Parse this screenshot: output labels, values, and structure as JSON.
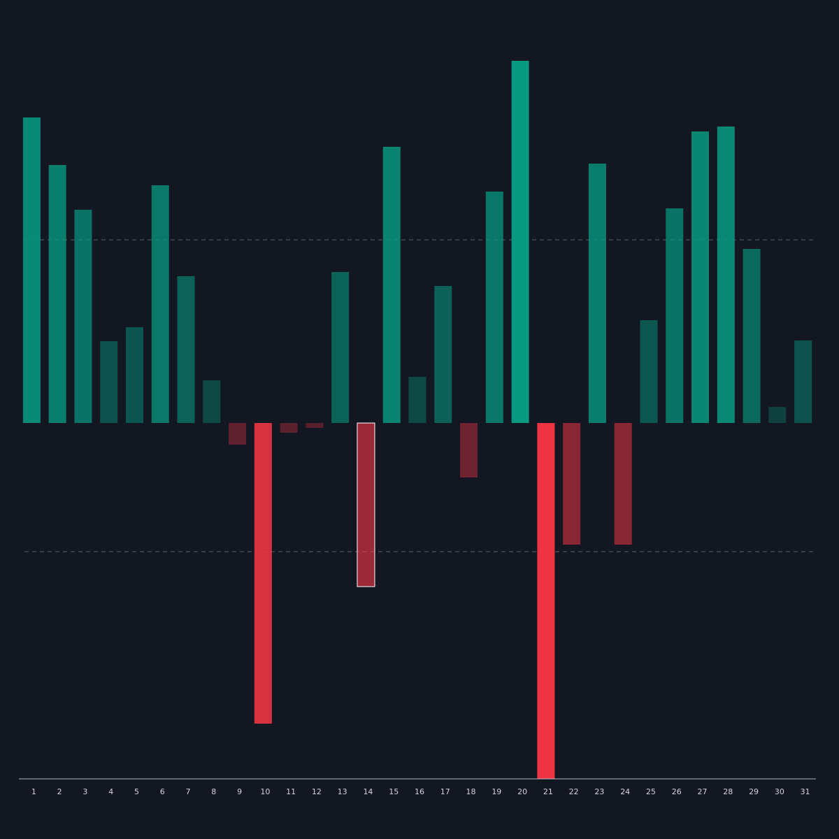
{
  "chart_data": {
    "type": "bar",
    "categories": [
      "1",
      "2",
      "3",
      "4",
      "5",
      "6",
      "7",
      "8",
      "9",
      "10",
      "11",
      "12",
      "13",
      "14",
      "15",
      "16",
      "17",
      "18",
      "19",
      "20",
      "21",
      "22",
      "23",
      "24",
      "25",
      "26",
      "27",
      "28",
      "29",
      "30",
      "31"
    ],
    "values": [
      43.7,
      36.9,
      30.5,
      11.7,
      13.7,
      34.0,
      21.0,
      6.1,
      -3.1,
      -43.0,
      -1.4,
      -0.7,
      21.6,
      -23.4,
      39.5,
      6.6,
      19.6,
      -7.8,
      33.1,
      51.8,
      -50.9,
      -17.4,
      37.1,
      -17.4,
      14.7,
      30.7,
      41.7,
      42.4,
      24.9,
      2.3,
      11.8
    ],
    "positive_color": "#089981",
    "negative_color": "#f23645",
    "ylim": [
      -50.9,
      51.8
    ],
    "reference_lines": [
      26.2,
      -18.4
    ],
    "highlighted": "14"
  }
}
